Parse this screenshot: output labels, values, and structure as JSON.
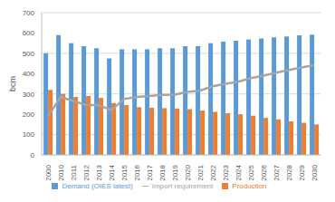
{
  "chart_data": {
    "type": "bar",
    "ylabel": "bcm",
    "categories": [
      "2000",
      "2010",
      "2011",
      "2012",
      "2013",
      "2014",
      "2015",
      "2016",
      "2017",
      "2018",
      "2019",
      "2020",
      "2021",
      "2022",
      "2023",
      "2024",
      "2025",
      "2026",
      "2027",
      "2028",
      "2029",
      "2030"
    ],
    "series": [
      {
        "name": "Demand (OIES latest)",
        "type": "bar",
        "color": "#5b9bd5",
        "values": [
          500,
          590,
          550,
          535,
          525,
          475,
          520,
          520,
          520,
          525,
          525,
          535,
          535,
          550,
          558,
          562,
          568,
          573,
          578,
          583,
          588,
          592
        ]
      },
      {
        "name": "Production",
        "type": "bar",
        "color": "#ed7d31",
        "values": [
          320,
          300,
          285,
          290,
          280,
          255,
          245,
          235,
          232,
          230,
          228,
          225,
          218,
          212,
          205,
          200,
          193,
          182,
          175,
          165,
          158,
          150
        ]
      },
      {
        "name": "Import requirement",
        "type": "line",
        "color": "#a5a5a5",
        "values": [
          190,
          285,
          265,
          245,
          245,
          220,
          275,
          285,
          290,
          295,
          297,
          310,
          317,
          338,
          350,
          360,
          378,
          390,
          405,
          418,
          430,
          442
        ]
      }
    ],
    "ylim": [
      0,
      700
    ],
    "yticks": [
      0,
      100,
      200,
      300,
      400,
      500,
      600,
      700
    ],
    "grid": true,
    "legend": "bottom"
  }
}
